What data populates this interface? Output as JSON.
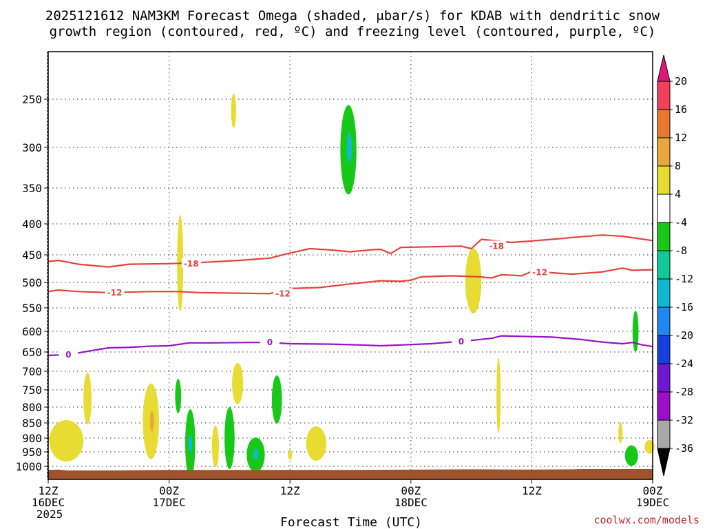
{
  "title": {
    "line1": "2025121612 NAM3KM Forecast Omega (shaded, μbar/s) for KDAB with dendritic snow",
    "line2": "growth region (contoured, red, ºC) and freezing level (contoured, purple, ºC)"
  },
  "x_axis": {
    "label": "Forecast Time (UTC)",
    "ticks": [
      {
        "hour": 0,
        "line1": "12Z",
        "line2": "16DEC",
        "line3": "2025"
      },
      {
        "hour": 12,
        "line1": "00Z",
        "line2": "17DEC",
        "line3": ""
      },
      {
        "hour": 24,
        "line1": "12Z",
        "line2": "",
        "line3": ""
      },
      {
        "hour": 36,
        "line1": "00Z",
        "line2": "18DEC",
        "line3": ""
      },
      {
        "hour": 48,
        "line1": "12Z",
        "line2": "",
        "line3": ""
      },
      {
        "hour": 60,
        "line1": "00Z",
        "line2": "19DEC",
        "line3": ""
      }
    ]
  },
  "credit": "coolwx.com/models",
  "colorbar": {
    "labels": [
      "20",
      "16",
      "12",
      "8",
      "4",
      "-4",
      "-8",
      "-12",
      "-16",
      "-20",
      "-24",
      "-28",
      "-32",
      "-36"
    ],
    "colors": [
      "#f0405a",
      "#e8782c",
      "#e8a83c",
      "#e8dc32",
      "#ffffff",
      "#18c818",
      "#10c898",
      "#10b8d0",
      "#2088f0",
      "#1840e0",
      "#7018d0",
      "#9a10c8",
      "#a8a8a8"
    ],
    "top_arrow_color": "#e0187a",
    "bottom_arrow_color": "#000000"
  },
  "chart_data": {
    "type": "time-height cross-section",
    "title": "2025121612 NAM3KM Forecast Omega for KDAB",
    "x_unit": "forecast hour from 2025-12-16 12Z",
    "xlim": [
      0,
      60
    ],
    "y_unit": "hPa",
    "ylim": [
      1050,
      200
    ],
    "y_ticks": [
      250,
      300,
      350,
      400,
      450,
      500,
      550,
      600,
      650,
      700,
      750,
      800,
      850,
      900,
      950,
      1000
    ],
    "grid": true,
    "contours": [
      {
        "name": "-18 C isotherm",
        "color": "#e8403a",
        "label": "-18",
        "points": [
          [
            0,
            462
          ],
          [
            1,
            460
          ],
          [
            3,
            467
          ],
          [
            6,
            472
          ],
          [
            8,
            467
          ],
          [
            12,
            466
          ],
          [
            15,
            464
          ],
          [
            19,
            460
          ],
          [
            22,
            456
          ],
          [
            24,
            447
          ],
          [
            26,
            440
          ],
          [
            28,
            442
          ],
          [
            30,
            445
          ],
          [
            32,
            442
          ],
          [
            33,
            441
          ],
          [
            34,
            448
          ],
          [
            35,
            438
          ],
          [
            38,
            437
          ],
          [
            41,
            436
          ],
          [
            42,
            440
          ],
          [
            43,
            425
          ],
          [
            46,
            430
          ],
          [
            50,
            425
          ],
          [
            52,
            422
          ],
          [
            55,
            418
          ],
          [
            57,
            420
          ],
          [
            60,
            427
          ]
        ],
        "label_positions": [
          [
            14.2,
            466
          ],
          [
            44.5,
            436
          ]
        ]
      },
      {
        "name": "-12 C isotherm",
        "color": "#e8403a",
        "label": "-12",
        "points": [
          [
            0,
            518
          ],
          [
            1,
            515
          ],
          [
            3,
            518
          ],
          [
            6,
            520
          ],
          [
            10,
            518
          ],
          [
            13,
            518
          ],
          [
            15,
            520
          ],
          [
            18,
            521
          ],
          [
            22,
            522
          ],
          [
            24,
            512
          ],
          [
            27,
            510
          ],
          [
            30,
            503
          ],
          [
            33,
            497
          ],
          [
            35,
            498
          ],
          [
            36,
            496
          ],
          [
            37,
            490
          ],
          [
            40,
            488
          ],
          [
            43,
            490
          ],
          [
            44,
            492
          ],
          [
            45,
            486
          ],
          [
            47,
            488
          ],
          [
            48,
            480
          ],
          [
            52,
            485
          ],
          [
            55,
            481
          ],
          [
            57,
            474
          ],
          [
            58,
            478
          ],
          [
            60,
            477
          ]
        ],
        "label_positions": [
          [
            6.6,
            520
          ],
          [
            23.3,
            522
          ],
          [
            48.8,
            482
          ]
        ]
      },
      {
        "name": "0 C freezing level",
        "color": "#9a10c8",
        "label": "0",
        "points": [
          [
            0,
            659
          ],
          [
            2,
            657
          ],
          [
            4,
            648
          ],
          [
            6,
            640
          ],
          [
            8,
            639
          ],
          [
            10,
            636
          ],
          [
            12,
            635
          ],
          [
            14,
            628
          ],
          [
            16,
            628
          ],
          [
            20,
            627
          ],
          [
            22,
            627
          ],
          [
            24,
            630
          ],
          [
            28,
            631
          ],
          [
            31,
            633
          ],
          [
            33,
            635
          ],
          [
            35,
            633
          ],
          [
            38,
            630
          ],
          [
            40,
            626
          ],
          [
            42,
            622
          ],
          [
            44,
            617
          ],
          [
            45,
            611
          ],
          [
            50,
            614
          ],
          [
            53,
            620
          ],
          [
            55,
            626
          ],
          [
            57,
            630
          ],
          [
            58,
            627
          ],
          [
            59,
            633
          ],
          [
            60,
            637
          ]
        ],
        "label_positions": [
          [
            2.0,
            657
          ],
          [
            22.0,
            627
          ],
          [
            41.0,
            625
          ]
        ]
      }
    ],
    "omega_features": [
      {
        "sign": "+",
        "value": 4,
        "x": 1.8,
        "p": 910,
        "w": 1.7,
        "h": 60
      },
      {
        "sign": "+",
        "value": 4,
        "x": 3.9,
        "p": 775,
        "w": 0.4,
        "h": 75
      },
      {
        "sign": "+",
        "value": 4,
        "x": 10.2,
        "p": 845,
        "w": 0.8,
        "h": 110
      },
      {
        "sign": "+",
        "value": 8,
        "x": 10.3,
        "p": 845,
        "w": 0.2,
        "h": 30
      },
      {
        "sign": "+",
        "value": 4,
        "x": 13.1,
        "p": 465,
        "w": 0.3,
        "h": 140
      },
      {
        "sign": "-",
        "value": -4,
        "x": 12.9,
        "p": 768,
        "w": 0.3,
        "h": 50
      },
      {
        "sign": "-",
        "value": -4,
        "x": 14.1,
        "p": 920,
        "w": 0.5,
        "h": 100
      },
      {
        "sign": "-",
        "value": -12,
        "x": 14.1,
        "p": 920,
        "w": 0.15,
        "h": 25
      },
      {
        "sign": "+",
        "value": 4,
        "x": 16.6,
        "p": 930,
        "w": 0.35,
        "h": 60
      },
      {
        "sign": "-",
        "value": -4,
        "x": 18.0,
        "p": 900,
        "w": 0.5,
        "h": 90
      },
      {
        "sign": "+",
        "value": 4,
        "x": 18.4,
        "p": 262,
        "w": 0.25,
        "h": 50
      },
      {
        "sign": "+",
        "value": 4,
        "x": 18.8,
        "p": 733,
        "w": 0.55,
        "h": 60
      },
      {
        "sign": "-",
        "value": -4,
        "x": 20.6,
        "p": 960,
        "w": 0.9,
        "h": 50
      },
      {
        "sign": "-",
        "value": -12,
        "x": 20.6,
        "p": 958,
        "w": 0.25,
        "h": 15
      },
      {
        "sign": "-",
        "value": -4,
        "x": 22.7,
        "p": 778,
        "w": 0.5,
        "h": 70
      },
      {
        "sign": "+",
        "value": 4,
        "x": 24.0,
        "p": 960,
        "w": 0.2,
        "h": 15
      },
      {
        "sign": "+",
        "value": 4,
        "x": 26.6,
        "p": 920,
        "w": 1.0,
        "h": 50
      },
      {
        "sign": "-",
        "value": -4,
        "x": 29.8,
        "p": 303,
        "w": 0.8,
        "h": 130
      },
      {
        "sign": "-",
        "value": -12,
        "x": 29.9,
        "p": 300,
        "w": 0.25,
        "h": 45
      },
      {
        "sign": "+",
        "value": 4,
        "x": 42.2,
        "p": 497,
        "w": 0.8,
        "h": 95
      },
      {
        "sign": "+",
        "value": 4,
        "x": 44.7,
        "p": 767,
        "w": 0.2,
        "h": 110
      },
      {
        "sign": "+",
        "value": 4,
        "x": 56.8,
        "p": 883,
        "w": 0.2,
        "h": 30
      },
      {
        "sign": "-",
        "value": -4,
        "x": 58.3,
        "p": 600,
        "w": 0.3,
        "h": 60
      },
      {
        "sign": "-",
        "value": -4,
        "x": 57.9,
        "p": 963,
        "w": 0.65,
        "h": 30
      },
      {
        "sign": "+",
        "value": 4,
        "x": 59.7,
        "p": 932,
        "w": 0.5,
        "h": 20
      }
    ],
    "terrain": {
      "color": "#a0522d",
      "points": [
        [
          0,
          1013
        ],
        [
          1,
          1012
        ],
        [
          2,
          1015
        ],
        [
          6,
          1015
        ],
        [
          12,
          1013
        ],
        [
          30,
          1013
        ],
        [
          42,
          1011
        ],
        [
          48,
          1012
        ],
        [
          52,
          1011
        ],
        [
          53,
          1010
        ],
        [
          60,
          1010
        ]
      ]
    }
  }
}
